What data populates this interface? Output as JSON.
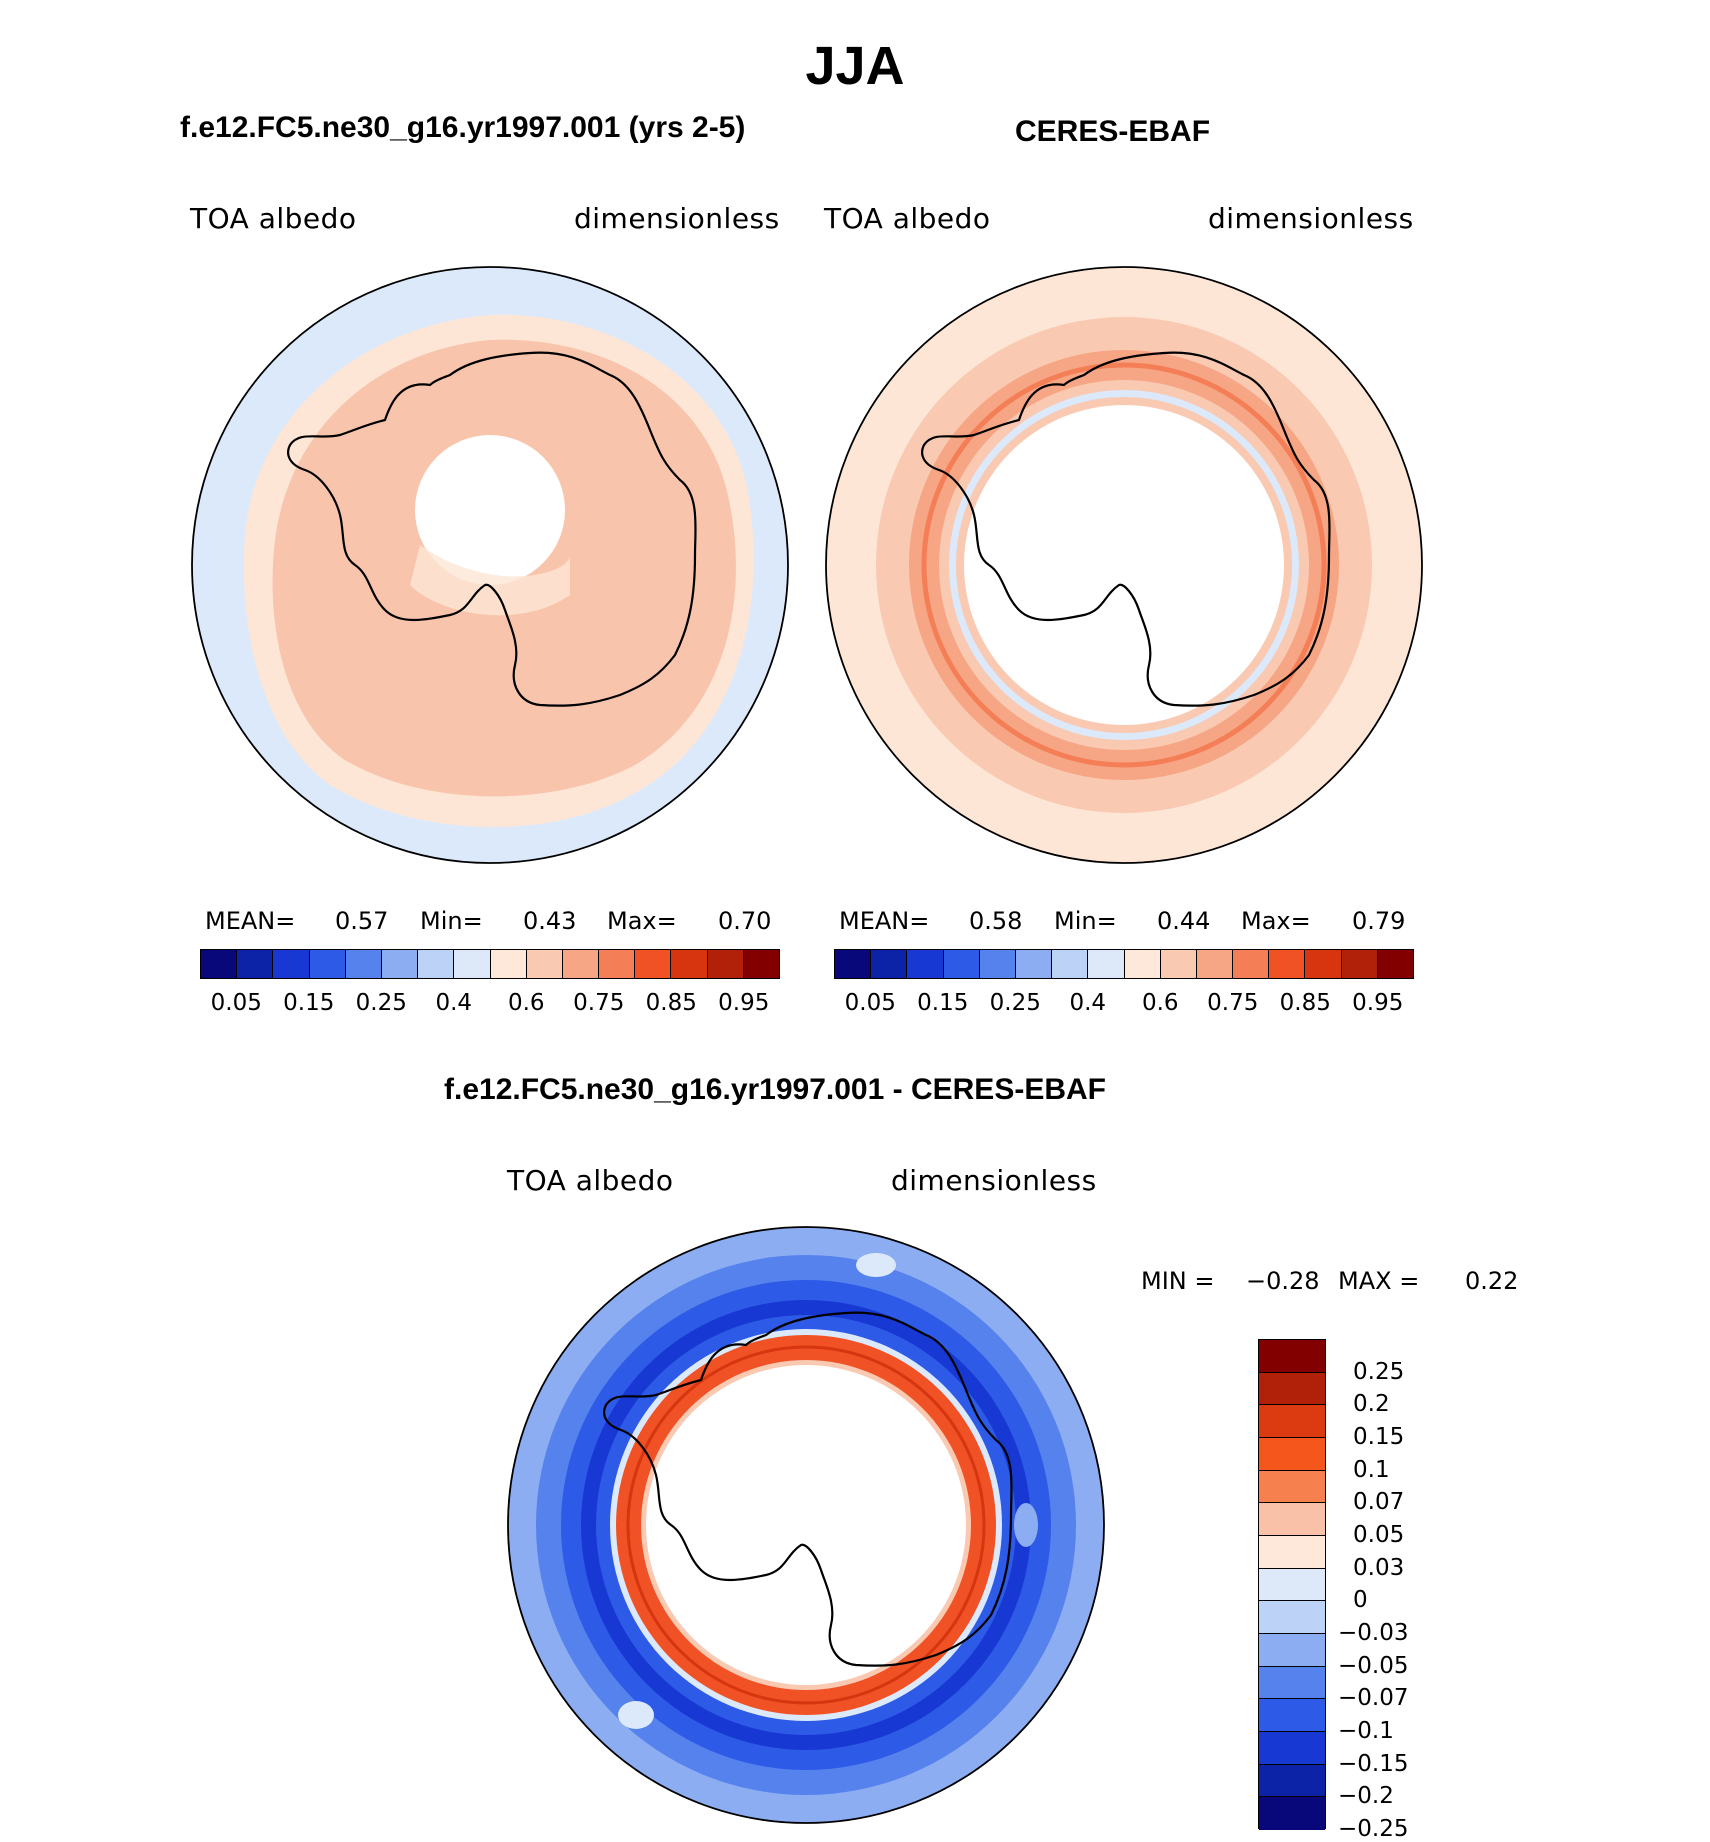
{
  "title": "JJA",
  "panels": {
    "model": {
      "subtitle": "f.e12.FC5.ne30_g16.yr1997.001 (yrs 2-5)",
      "left_label": "TOA albedo",
      "right_label": "dimensionless",
      "stats": {
        "mean_label": "MEAN=",
        "mean": "0.57",
        "min_label": "Min=",
        "min": "0.43",
        "max_label": "Max=",
        "max": "0.70"
      }
    },
    "obs": {
      "subtitle": "CERES-EBAF",
      "left_label": "TOA albedo",
      "right_label": "dimensionless",
      "stats": {
        "mean_label": "MEAN=",
        "mean": "0.58",
        "min_label": "Min=",
        "min": "0.44",
        "max_label": "Max=",
        "max": "0.79"
      }
    },
    "diff": {
      "subtitle": "f.e12.FC5.ne30_g16.yr1997.001 - CERES-EBAF",
      "left_label": "TOA albedo",
      "right_label": "dimensionless",
      "stats": {
        "min_label": "MIN =",
        "min": "−0.28",
        "max_label": "MAX =",
        "max": "0.22"
      }
    }
  },
  "colorbar_abs": {
    "colors": [
      "#08087a",
      "#0c23a8",
      "#1738d2",
      "#2d5ae6",
      "#5582ec",
      "#8cadf1",
      "#bcd2f6",
      "#dde9f8",
      "#fde8d9",
      "#f9c9b2",
      "#f6a684",
      "#f47e56",
      "#f05125",
      "#d73410",
      "#b12008",
      "#820000"
    ],
    "tick_labels": [
      "0.05",
      "0.15",
      "0.25",
      "0.4",
      "0.6",
      "0.75",
      "0.85",
      "0.95"
    ]
  },
  "colorbar_diff": {
    "colors_top_to_bottom": [
      "#820000",
      "#b12008",
      "#dc3a10",
      "#f4561c",
      "#f6814f",
      "#f9c1a7",
      "#fde8d9",
      "#dde9f8",
      "#bcd2f6",
      "#8cadf1",
      "#5582ec",
      "#2d5ae6",
      "#1738d2",
      "#0c23a8",
      "#08087a"
    ],
    "tick_labels": [
      "0.25",
      "0.2",
      "0.15",
      "0.1",
      "0.07",
      "0.05",
      "0.03",
      "0",
      "−0.03",
      "−0.05",
      "−0.07",
      "−0.1",
      "−0.15",
      "−0.2",
      "−0.25"
    ]
  },
  "map_colors": {
    "ocean_low": "#dbe9fb",
    "model_mid": "#fde6d6",
    "model_high": "#f8c5ac",
    "obs_mid": "#f9c9b2",
    "obs_high": "#f6a684",
    "obs_peak": "#f47e56",
    "diff_neg1": "#8cadf1",
    "diff_neg2": "#5582ec",
    "diff_neg3": "#2d5ae6",
    "diff_neg4": "#1738d2",
    "diff_pos": "#f05125",
    "diff_pos2": "#d73410",
    "coastline": "#000000"
  }
}
